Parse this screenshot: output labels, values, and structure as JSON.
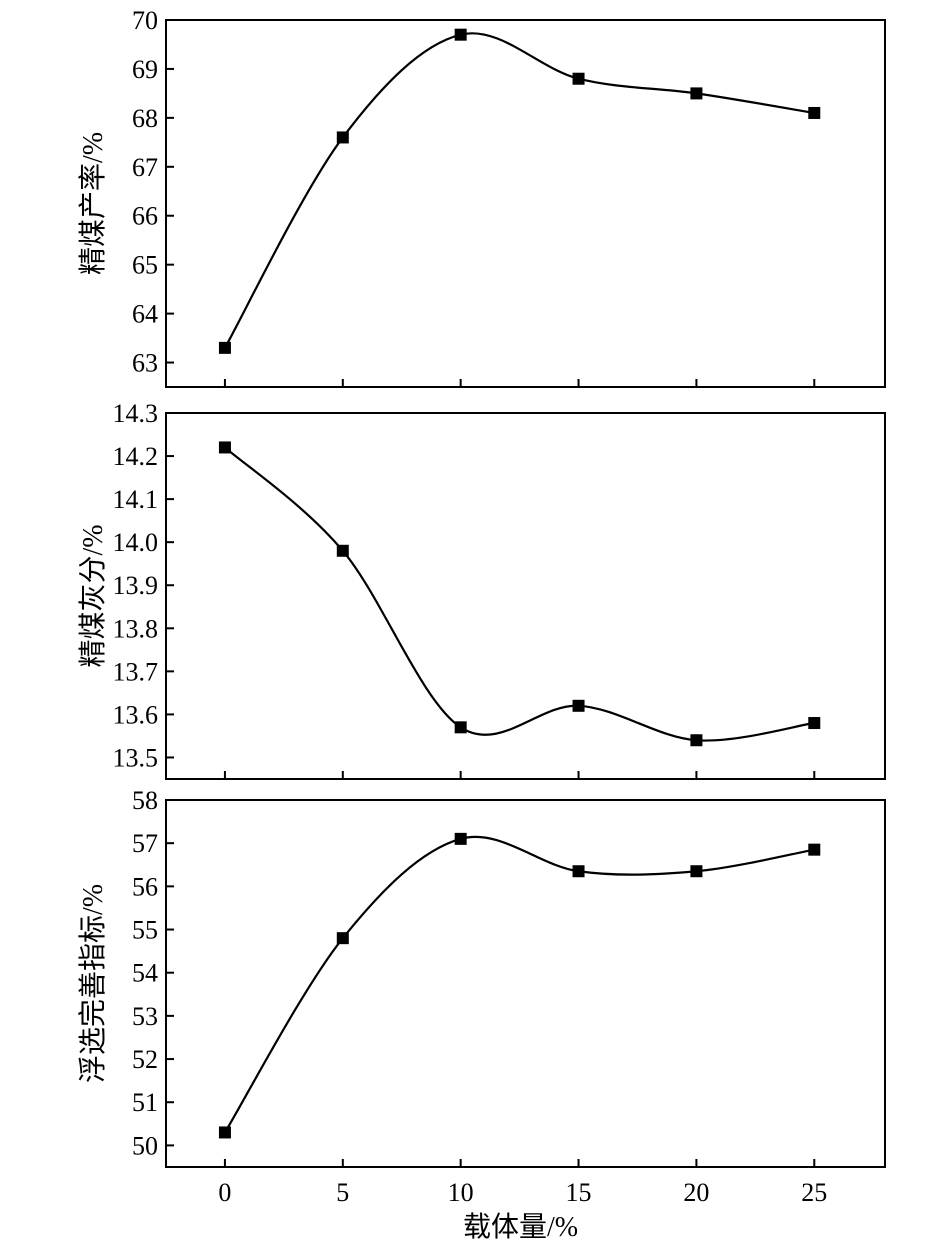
{
  "chart_data": [
    {
      "type": "line",
      "ylabel": "精煤产率/%",
      "x": [
        0,
        5,
        10,
        15,
        20,
        25
      ],
      "values": [
        63.3,
        67.6,
        69.7,
        68.8,
        68.5,
        68.1
      ],
      "xlim": [
        -2.5,
        28
      ],
      "ylim": [
        62.5,
        70
      ],
      "yticks": [
        63,
        64,
        65,
        66,
        67,
        68,
        69,
        70
      ],
      "ytick_labels": [
        "63",
        "64",
        "65",
        "66",
        "67",
        "68",
        "69",
        "70"
      ],
      "marker": "square",
      "line_style": "smooth",
      "color": "#000000"
    },
    {
      "type": "line",
      "ylabel": "精煤灰分/%",
      "x": [
        0,
        5,
        10,
        15,
        20,
        25
      ],
      "values": [
        14.22,
        13.98,
        13.57,
        13.62,
        13.54,
        13.58
      ],
      "xlim": [
        -2.5,
        28
      ],
      "ylim": [
        13.45,
        14.3
      ],
      "yticks": [
        13.5,
        13.6,
        13.7,
        13.8,
        13.9,
        14.0,
        14.1,
        14.2,
        14.3
      ],
      "ytick_labels": [
        "13.5",
        "13.6",
        "13.7",
        "13.8",
        "13.9",
        "14.0",
        "14.1",
        "14.2",
        "14.3"
      ],
      "marker": "square",
      "line_style": "smooth",
      "color": "#000000"
    },
    {
      "type": "line",
      "ylabel": "浮选完善指标/%",
      "xlabel": "载体量/%",
      "x": [
        0,
        5,
        10,
        15,
        20,
        25
      ],
      "values": [
        50.3,
        54.8,
        57.1,
        56.35,
        56.35,
        56.85
      ],
      "xlim": [
        -2.5,
        28
      ],
      "ylim": [
        49.5,
        58
      ],
      "yticks": [
        50,
        51,
        52,
        53,
        54,
        55,
        56,
        57,
        58
      ],
      "ytick_labels": [
        "50",
        "51",
        "52",
        "53",
        "54",
        "55",
        "56",
        "57",
        "58"
      ],
      "xticks": [
        0,
        5,
        10,
        15,
        20,
        25
      ],
      "xtick_labels": [
        "0",
        "5",
        "10",
        "15",
        "20",
        "25"
      ],
      "marker": "square",
      "line_style": "smooth",
      "color": "#000000"
    }
  ]
}
